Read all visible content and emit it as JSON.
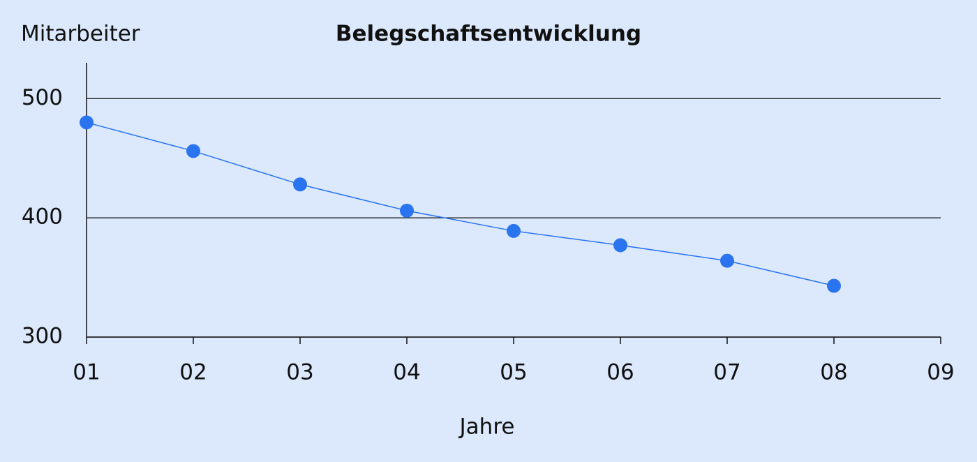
{
  "chart_data": {
    "type": "line",
    "title": "Belegschaftsentwicklung",
    "y_label": "Mitarbeiter",
    "x_label": "Jahre",
    "categories": [
      "01",
      "02",
      "03",
      "04",
      "05",
      "06",
      "07",
      "08",
      "09"
    ],
    "values": [
      480,
      456,
      428,
      406,
      389,
      377,
      364,
      343,
      null
    ],
    "color": "#2a74f0",
    "ylim": [
      300,
      530
    ],
    "yticks": [
      300,
      400,
      500
    ],
    "grid": true
  }
}
